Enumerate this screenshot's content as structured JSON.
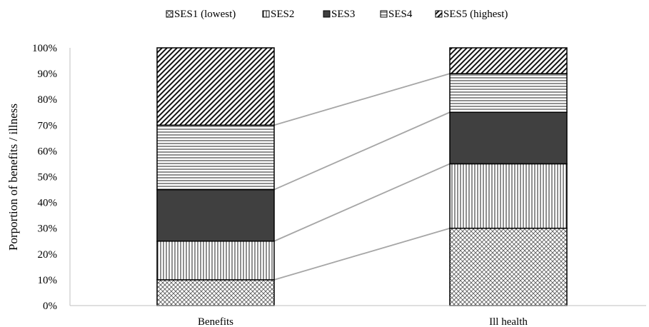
{
  "chart_data": {
    "type": "bar",
    "stacked": true,
    "percent": true,
    "title": "",
    "xlabel": "",
    "ylabel": "Porportion of benefits / illness",
    "categories": [
      "Benefits",
      "Ill health"
    ],
    "ylim": [
      0,
      100
    ],
    "yticks": [
      "0%",
      "10%",
      "20%",
      "30%",
      "40%",
      "50%",
      "60%",
      "70%",
      "80%",
      "90%",
      "100%"
    ],
    "grid": false,
    "legend_position": "top",
    "connector_lines": true,
    "series": [
      {
        "name": "SES1 (lowest)",
        "values": [
          10,
          30
        ],
        "pattern": "crosshatch"
      },
      {
        "name": "SES2",
        "values": [
          15,
          25
        ],
        "pattern": "vertical-lines"
      },
      {
        "name": "SES3",
        "values": [
          20,
          20
        ],
        "pattern": "solid-dark",
        "color": "#404040"
      },
      {
        "name": "SES4",
        "values": [
          25,
          15
        ],
        "pattern": "horizontal-lines"
      },
      {
        "name": "SES5 (highest)",
        "values": [
          30,
          10
        ],
        "pattern": "diagonal-lines"
      }
    ]
  }
}
